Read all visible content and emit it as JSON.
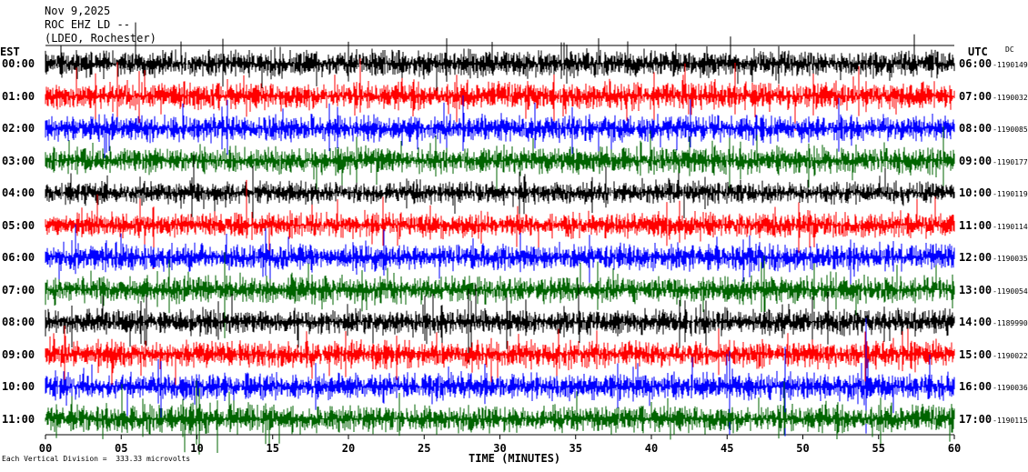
{
  "header": {
    "date": "Nov 9,2025",
    "station": "ROC EHZ LD --",
    "location": "(LDEO, Rochester)"
  },
  "left_axis_title": "EST",
  "right_axis_title": "UTC",
  "dc_label": "DC",
  "scale_note": "Each Vertical Division =  333.33 microvolts",
  "chart_data": {
    "type": "helicorder",
    "xlabel": "TIME (MINUTES)",
    "xlim": [
      0,
      60
    ],
    "x_ticks": [
      "00",
      "05",
      "10",
      "15",
      "20",
      "25",
      "30",
      "35",
      "40",
      "45",
      "50",
      "55",
      "60"
    ],
    "trace_colors": [
      "#000000",
      "#ff0000",
      "#0000ff",
      "#006400"
    ],
    "rows": [
      {
        "local": "00:00",
        "utc": "06:00",
        "count": "-1190149",
        "amplitude": 1.0
      },
      {
        "local": "01:00",
        "utc": "07:00",
        "count": "-1190032",
        "amplitude": 1.05
      },
      {
        "local": "02:00",
        "utc": "08:00",
        "count": "-1190085",
        "amplitude": 1.0
      },
      {
        "local": "03:00",
        "utc": "09:00",
        "count": "-1190177",
        "amplitude": 1.0
      },
      {
        "local": "04:00",
        "utc": "10:00",
        "count": "-1190119",
        "amplitude": 0.85
      },
      {
        "local": "05:00",
        "utc": "11:00",
        "count": "-1190114",
        "amplitude": 0.95
      },
      {
        "local": "06:00",
        "utc": "12:00",
        "count": "-1190035",
        "amplitude": 1.0
      },
      {
        "local": "07:00",
        "utc": "13:00",
        "count": "-1190054",
        "amplitude": 1.0
      },
      {
        "local": "08:00",
        "utc": "14:00",
        "count": "-1189990",
        "amplitude": 0.95
      },
      {
        "local": "09:00",
        "utc": "15:00",
        "count": "-1190022",
        "amplitude": 1.0
      },
      {
        "local": "10:00",
        "utc": "16:00",
        "count": "-1190036",
        "amplitude": 1.0
      },
      {
        "local": "11:00",
        "utc": "17:00",
        "count": "-1190115",
        "amplitude": 1.05
      }
    ]
  }
}
